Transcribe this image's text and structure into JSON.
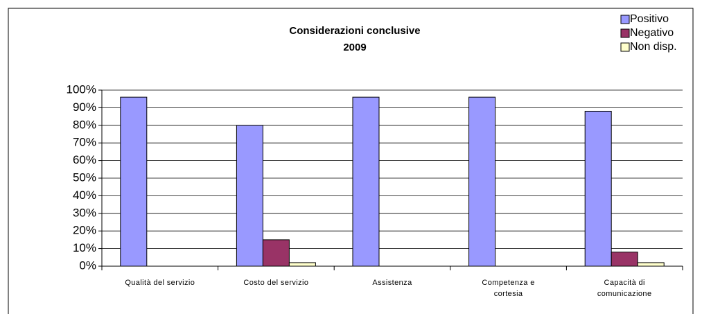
{
  "chart_data": {
    "type": "bar",
    "title": "Considerazioni conclusive",
    "subtitle": "2009",
    "categories": [
      "Qualità del servizio",
      "Costo del servizio",
      "Assistenza",
      "Competenza e cortesia",
      "Capacità di comunicazione"
    ],
    "series": [
      {
        "name": "Positivo",
        "color": "#9999ff",
        "values": [
          96,
          80,
          96,
          96,
          88
        ]
      },
      {
        "name": "Negativo",
        "color": "#993366",
        "values": [
          0,
          15,
          0,
          0,
          8
        ]
      },
      {
        "name": "Non disp.",
        "color": "#ffffcc",
        "values": [
          0,
          2,
          0,
          0,
          2
        ]
      }
    ],
    "ylim": [
      0,
      100
    ],
    "yticks": [
      {
        "value": 0,
        "label": "0%"
      },
      {
        "value": 10,
        "label": "10%"
      },
      {
        "value": 20,
        "label": "20%"
      },
      {
        "value": 30,
        "label": "30%"
      },
      {
        "value": 40,
        "label": "40%"
      },
      {
        "value": 50,
        "label": "50%"
      },
      {
        "value": 60,
        "label": "60%"
      },
      {
        "value": 70,
        "label": "70%"
      },
      {
        "value": 80,
        "label": "80%"
      },
      {
        "value": 90,
        "label": "90%"
      },
      {
        "value": 100,
        "label": "100%"
      }
    ],
    "grid": true,
    "legend": "top-right"
  }
}
